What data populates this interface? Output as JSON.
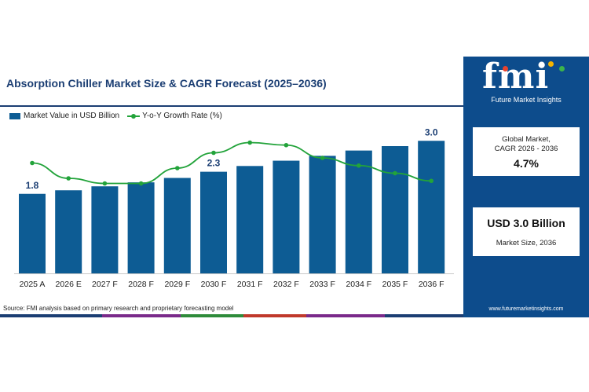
{
  "title": "Absorption Chiller Market Size & CAGR Forecast (2025–2036)",
  "source": "Source: FMI analysis based on primary research and proprietary forecasting model",
  "colors": {
    "bar": "#0d5c94",
    "line": "#22a33a",
    "title": "#1b3e73",
    "panel": "#0d4c8c",
    "strip": [
      "#1b3e73",
      "#7a2a8a",
      "#2e8b3a",
      "#c0392b",
      "#7a2a8a",
      "#1b3e73"
    ]
  },
  "brand": {
    "logo_text": "fmi",
    "tagline": "Future Market Insights",
    "website": "www.futuremarketinsights.com",
    "dot_colors": [
      "#e8432e",
      "#f5b400",
      "#3cb44b"
    ]
  },
  "cagr_card": {
    "label_line1": "Global Market,",
    "label_line2": "CAGR 2026 - 2036",
    "value": "4.7%"
  },
  "size_card": {
    "value": "USD 3.0 Billion",
    "label": "Market Size, 2036"
  },
  "chart_data": {
    "type": "bar",
    "categories": [
      "2025 A",
      "2026 E",
      "2027 F",
      "2028 F",
      "2029 F",
      "2030 F",
      "2031 F",
      "2032 F",
      "2033 F",
      "2034 F",
      "2035 F",
      "2036 F"
    ],
    "series": [
      {
        "name": "Market Value in USD Billion",
        "type": "bar",
        "values": [
          1.8,
          1.88,
          1.97,
          2.06,
          2.16,
          2.3,
          2.43,
          2.55,
          2.66,
          2.78,
          2.88,
          3.0
        ]
      },
      {
        "name": "Y-o-Y Growth Rate (%)",
        "type": "line",
        "values": [
          4.9,
          4.6,
          4.5,
          4.5,
          4.8,
          5.1,
          5.3,
          5.25,
          5.0,
          4.85,
          4.7,
          4.55
        ]
      }
    ],
    "data_labels": [
      {
        "index": 0,
        "text": "1.8"
      },
      {
        "index": 5,
        "text": "2.3"
      },
      {
        "index": 11,
        "text": "3.0"
      }
    ],
    "ylim": [
      0,
      3.2
    ],
    "growth_range": [
      3.6,
      5.6
    ],
    "grid": false,
    "legend": "top-left"
  }
}
